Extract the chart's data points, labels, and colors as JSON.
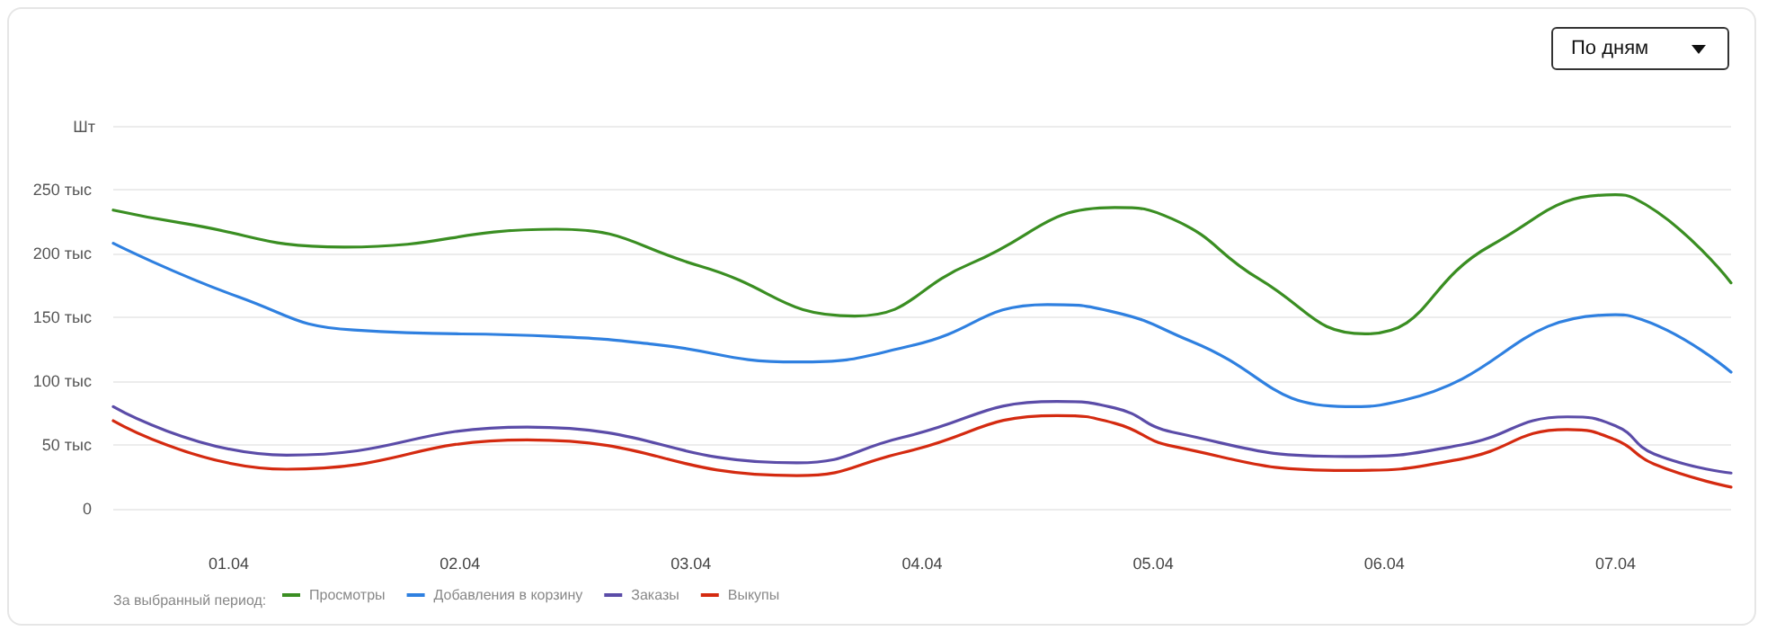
{
  "chart_data": {
    "type": "line",
    "legend_title": "За выбранный период:",
    "annotations": [
      "По дням"
    ],
    "ylabel": "Шт",
    "series": [
      {
        "name": "Просмотры",
        "color": "#3a8e22",
        "x": [
          "--03-31T12:00",
          "--03-31T19:00",
          "--04-01T12:00",
          "--04-02T10:00",
          "--04-03T01:00",
          "--04-03T17:00",
          "--04-04T05:00",
          "--04-04T20:00",
          "--04-05T02:00",
          "--04-05T11:00",
          "--04-05T22:00",
          "--04-06T11:00",
          "--04-07T00:00",
          "--04-07T02:00",
          "--04-07T12:00"
        ],
        "values": [
          234,
          224,
          205,
          219,
          190,
          151,
          192,
          236,
          227,
          180,
          137,
          206,
          246,
          243,
          177
        ]
      },
      {
        "name": "Добавления в корзину",
        "color": "#2f80e0",
        "x": [
          "--03-31T12:00",
          "--04-01T01:00",
          "--04-01T13:00",
          "--04-02T10:00",
          "--04-02T20:00",
          "--04-03T11:00",
          "--04-03T23:00",
          "--04-04T13:00",
          "--04-04T20:00",
          "--04-05T04:00",
          "--04-05T20:00",
          "--04-06T02:00",
          "--04-07T00:00",
          "--04-07T02:00",
          "--04-07T12:00"
        ],
        "values": [
          208,
          166,
          140,
          135,
          129,
          115,
          128,
          160,
          154,
          131,
          80,
          85,
          152,
          150,
          107
        ]
      },
      {
        "name": "Заказы",
        "color": "#5b4ca8",
        "x": [
          "--03-31T12:00",
          "--04-01T06:00",
          "--04-02T07:00",
          "--04-03T11:00",
          "--04-03T22:00",
          "--04-04T14:00",
          "--04-04T20:00",
          "--04-05T02:00",
          "--04-05T20:00",
          "--04-06T08:00",
          "--04-06T19:00",
          "--04-07T00:00",
          "--04-07T04:00",
          "--04-07T12:00"
        ],
        "values": [
          80,
          42,
          64,
          36,
          56,
          84,
          79,
          60,
          41,
          50,
          72,
          65,
          43,
          28
        ]
      },
      {
        "name": "Выкупы",
        "color": "#d42a10",
        "x": [
          "--03-31T12:00",
          "--04-01T06:00",
          "--04-02T07:00",
          "--04-03T11:00",
          "--04-03T22:00",
          "--04-04T14:00",
          "--04-04T20:00",
          "--04-05T02:00",
          "--04-05T20:00",
          "--04-06T08:00",
          "--04-06T19:00",
          "--04-07T00:00",
          "--04-07T04:00",
          "--04-07T12:00"
        ],
        "values": [
          69,
          31,
          54,
          26,
          44,
          73,
          67,
          49,
          30,
          39,
          62,
          54,
          35,
          17
        ]
      }
    ],
    "xlim": [
      "--03-31T12:00",
      "--04-07T12:00"
    ],
    "xticks": [
      {
        "value": "--04-01",
        "label": "01.04"
      },
      {
        "value": "--04-02",
        "label": "02.04"
      },
      {
        "value": "--04-03",
        "label": "03.04"
      },
      {
        "value": "--04-04",
        "label": "04.04"
      },
      {
        "value": "--04-05",
        "label": "05.04"
      },
      {
        "value": "--04-06",
        "label": "06.04"
      },
      {
        "value": "--04-07",
        "label": "07.04"
      }
    ],
    "ylim": [
      0,
      300
    ],
    "yticks": [
      {
        "value": 0,
        "label": "0"
      },
      {
        "value": 50,
        "label": "50 тыс"
      },
      {
        "value": 100,
        "label": "100 тыс"
      },
      {
        "value": 150,
        "label": "150 тыс"
      },
      {
        "value": 200,
        "label": "200 тыс"
      },
      {
        "value": 250,
        "label": "250 тыс"
      },
      {
        "value": 300,
        "label": null
      }
    ],
    "grid": "y",
    "legend": "bottom",
    "marker": "none",
    "line_style": "solid"
  }
}
